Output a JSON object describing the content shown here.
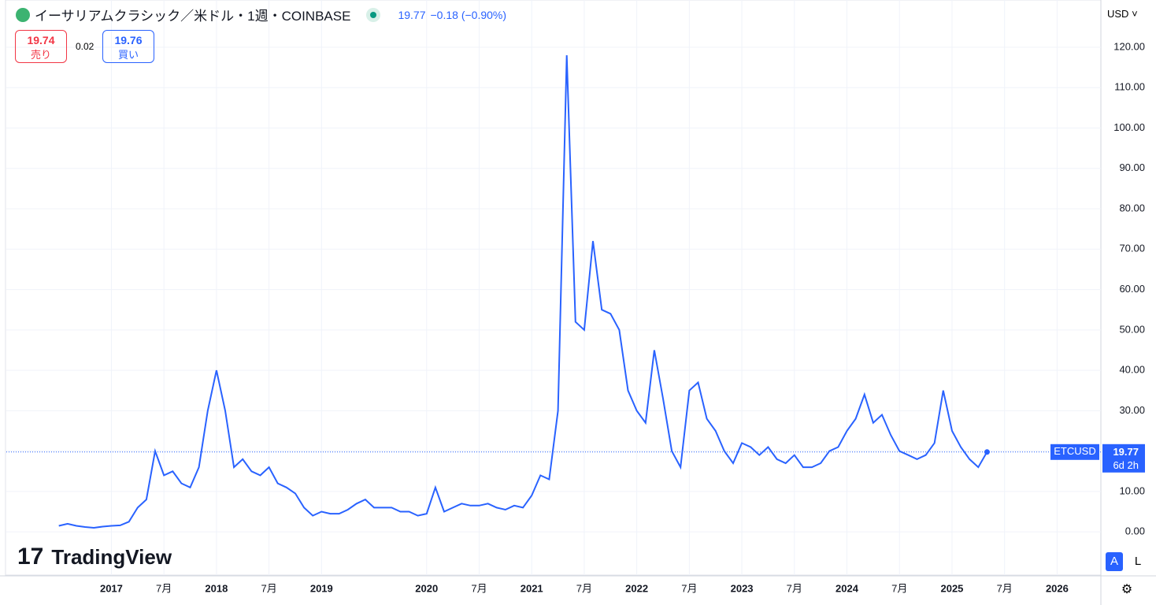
{
  "chart_data": {
    "type": "line",
    "title": "イーサリアムクラシック／米ドル・1週・COINBASE",
    "last_price": 19.77,
    "change": "−0.18 (−0.90%)",
    "bid": 19.74,
    "bid_label": "売り",
    "spread": 0.02,
    "ask": 19.76,
    "ask_label": "買い",
    "currency": "USD",
    "symbol": "ETCUSD",
    "countdown": "6d 2h",
    "buttons": [
      "A",
      "L"
    ],
    "logo": "TradingView",
    "x": [
      "2016-07",
      "2016-08",
      "2016-09",
      "2016-10",
      "2016-11",
      "2016-12",
      "2017-01",
      "2017-02",
      "2017-03",
      "2017-04",
      "2017-05",
      "2017-06",
      "2017-07",
      "2017-08",
      "2017-09",
      "2017-10",
      "2017-11",
      "2017-12",
      "2018-01",
      "2018-02",
      "2018-03",
      "2018-04",
      "2018-05",
      "2018-06",
      "2018-07",
      "2018-08",
      "2018-09",
      "2018-10",
      "2018-11",
      "2018-12",
      "2019-01",
      "2019-02",
      "2019-03",
      "2019-04",
      "2019-05",
      "2019-06",
      "2019-07",
      "2019-08",
      "2019-09",
      "2019-10",
      "2019-11",
      "2019-12",
      "2020-01",
      "2020-02",
      "2020-03",
      "2020-04",
      "2020-05",
      "2020-06",
      "2020-07",
      "2020-08",
      "2020-09",
      "2020-10",
      "2020-11",
      "2020-12",
      "2021-01",
      "2021-02",
      "2021-03",
      "2021-04",
      "2021-05",
      "2021-06",
      "2021-07",
      "2021-08",
      "2021-09",
      "2021-10",
      "2021-11",
      "2021-12",
      "2022-01",
      "2022-02",
      "2022-03",
      "2022-04",
      "2022-05",
      "2022-06",
      "2022-07",
      "2022-08",
      "2022-09",
      "2022-10",
      "2022-11",
      "2022-12",
      "2023-01",
      "2023-02",
      "2023-03",
      "2023-04",
      "2023-05",
      "2023-06",
      "2023-07",
      "2023-08",
      "2023-09",
      "2023-10",
      "2023-11",
      "2023-12",
      "2024-01",
      "2024-02",
      "2024-03",
      "2024-04",
      "2024-05",
      "2024-06",
      "2024-07",
      "2024-08",
      "2024-09",
      "2024-10",
      "2024-11",
      "2024-12",
      "2025-01",
      "2025-02",
      "2025-03",
      "2025-04",
      "2025-05"
    ],
    "series": [
      {
        "name": "ETCUSD",
        "color": "#2962ff",
        "values": [
          1.5,
          2.0,
          1.5,
          1.2,
          1.0,
          1.3,
          1.5,
          1.6,
          2.5,
          6,
          8,
          20,
          14,
          15,
          12,
          11,
          16,
          30,
          40,
          30,
          16,
          18,
          15,
          14,
          16,
          12,
          11,
          9.5,
          6,
          4,
          5,
          4.5,
          4.5,
          5.5,
          7,
          8,
          6,
          6,
          6,
          5,
          5,
          4,
          4.5,
          11,
          5,
          6,
          7,
          6.5,
          6.5,
          7,
          6,
          5.5,
          6.5,
          6,
          9,
          14,
          13,
          30,
          118,
          52,
          50,
          72,
          55,
          54,
          50,
          35,
          30,
          27,
          45,
          33,
          20,
          16,
          35,
          37,
          28,
          25,
          20,
          17,
          22,
          21,
          19,
          21,
          18,
          17,
          19,
          16,
          16,
          17,
          20,
          21,
          25,
          28,
          34,
          27,
          29,
          24,
          20,
          19,
          18,
          19,
          22,
          35,
          25,
          21,
          18,
          16,
          19.77
        ]
      }
    ],
    "xlim": [
      "2016-01",
      "2026-06"
    ],
    "xticks": [
      {
        "value": "2017-01",
        "label": "2017"
      },
      {
        "value": "2017-07",
        "label": "7月"
      },
      {
        "value": "2018-01",
        "label": "2018"
      },
      {
        "value": "2018-07",
        "label": "7月"
      },
      {
        "value": "2019-01",
        "label": "2019"
      },
      {
        "value": "2020-01",
        "label": "2020"
      },
      {
        "value": "2020-07",
        "label": "7月"
      },
      {
        "value": "2021-01",
        "label": "2021"
      },
      {
        "value": "2021-07",
        "label": "7月"
      },
      {
        "value": "2022-01",
        "label": "2022"
      },
      {
        "value": "2022-07",
        "label": "7月"
      },
      {
        "value": "2023-01",
        "label": "2023"
      },
      {
        "value": "2023-07",
        "label": "7月"
      },
      {
        "value": "2024-01",
        "label": "2024"
      },
      {
        "value": "2024-07",
        "label": "7月"
      },
      {
        "value": "2025-01",
        "label": "2025"
      },
      {
        "value": "2025-07",
        "label": "7月"
      },
      {
        "value": "2026-01",
        "label": "2026"
      }
    ],
    "ylim": [
      -10.7,
      131.7
    ],
    "yticks": [
      {
        "value": 0,
        "label": "0.00"
      },
      {
        "value": 10,
        "label": "10.00"
      },
      {
        "value": 20,
        "label": "20.00"
      },
      {
        "value": 30,
        "label": "30.00"
      },
      {
        "value": 40,
        "label": "40.00"
      },
      {
        "value": 50,
        "label": "50.00"
      },
      {
        "value": 60,
        "label": "60.00"
      },
      {
        "value": 70,
        "label": "70.00"
      },
      {
        "value": 80,
        "label": "80.00"
      },
      {
        "value": 90,
        "label": "90.00"
      },
      {
        "value": 100,
        "label": "100.00"
      },
      {
        "value": 110,
        "label": "110.00"
      },
      {
        "value": 120,
        "label": "120.00"
      }
    ],
    "grid": true
  }
}
